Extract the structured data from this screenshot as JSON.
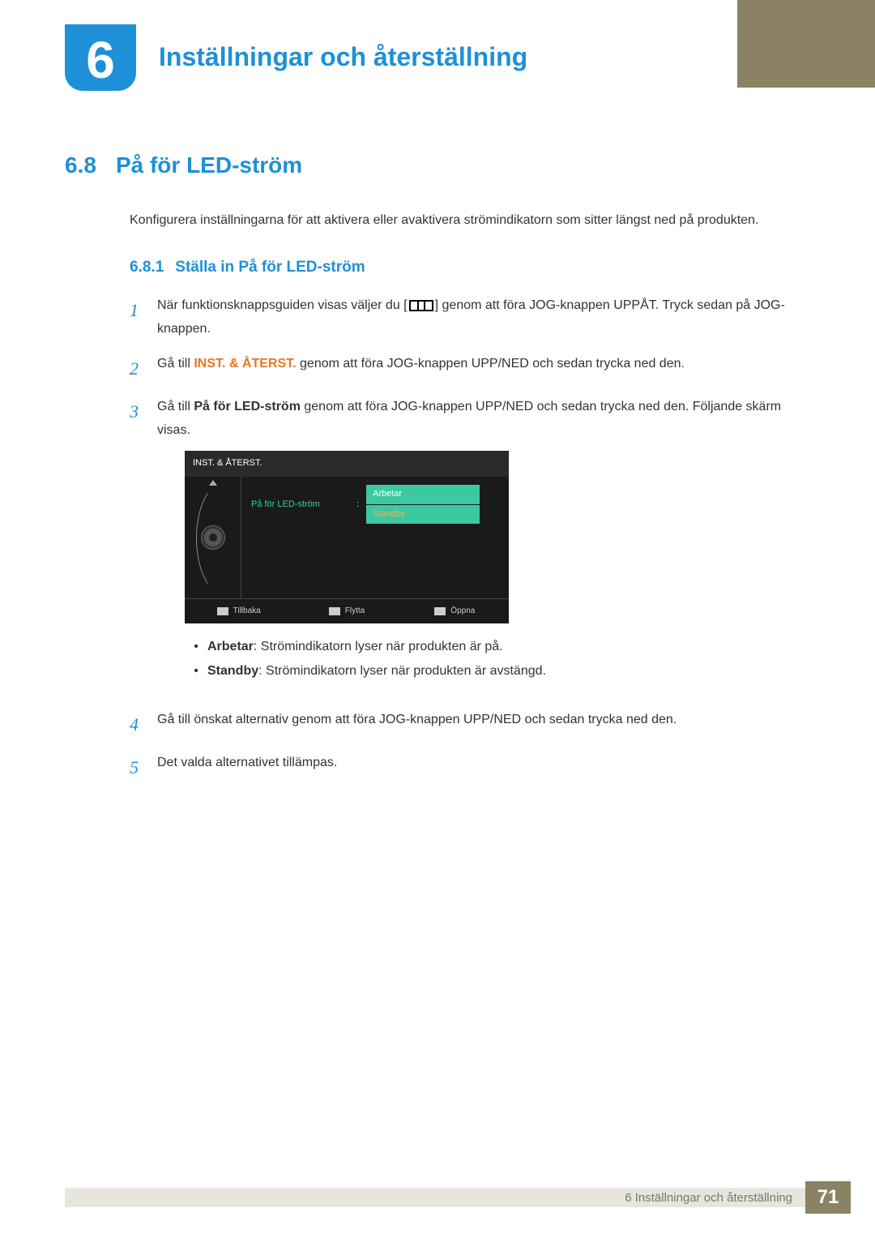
{
  "chapter": {
    "number": "6",
    "title": "Inställningar och återställning"
  },
  "section": {
    "number": "6.8",
    "title": "På för LED-ström"
  },
  "intro": "Konfigurera inställningarna för att aktivera eller avaktivera strömindikatorn som sitter längst ned på produkten.",
  "subsection": {
    "number": "6.8.1",
    "title": "Ställa in På för LED-ström"
  },
  "steps": {
    "s1a": "När funktionsknappsguiden visas väljer du [",
    "s1b": "] genom att föra JOG-knappen UPPÅT. Tryck sedan på JOG-knappen.",
    "s2a": "Gå till ",
    "s2orange": "INST. & ÅTERST.",
    "s2b": " genom att föra JOG-knappen UPP/NED och sedan trycka ned den.",
    "s3a": "Gå till ",
    "s3bold": "På för LED-ström",
    "s3b": " genom att föra JOG-knappen UPP/NED och sedan trycka ned den. Följande skärm visas.",
    "s4": "Gå till önskat alternativ genom att föra JOG-knappen UPP/NED och sedan trycka ned den.",
    "s5": "Det valda alternativet tillämpas.",
    "n1": "1",
    "n2": "2",
    "n3": "3",
    "n4": "4",
    "n5": "5"
  },
  "osd": {
    "header": "INST. & ÅTERST.",
    "label": "På för LED-ström",
    "colon": ":",
    "opt1": "Arbetar",
    "opt2": "Standby",
    "foot1": "Tillbaka",
    "foot2": "Flytta",
    "foot3": "Öppna",
    "colors": {
      "bg": "#1a1a1a",
      "header_bg": "#2a2a2a",
      "accent": "#3cc8a0",
      "selected_text": "#f0b050"
    }
  },
  "bullets": {
    "b1bold": "Arbetar",
    "b1text": ": Strömindikatorn lyser när produkten är på.",
    "b2bold": "Standby",
    "b2text": ": Strömindikatorn lyser när produkten är avstängd.",
    "dot": "•"
  },
  "footer": {
    "text": "6 Inställningar och återställning",
    "page": "71"
  }
}
